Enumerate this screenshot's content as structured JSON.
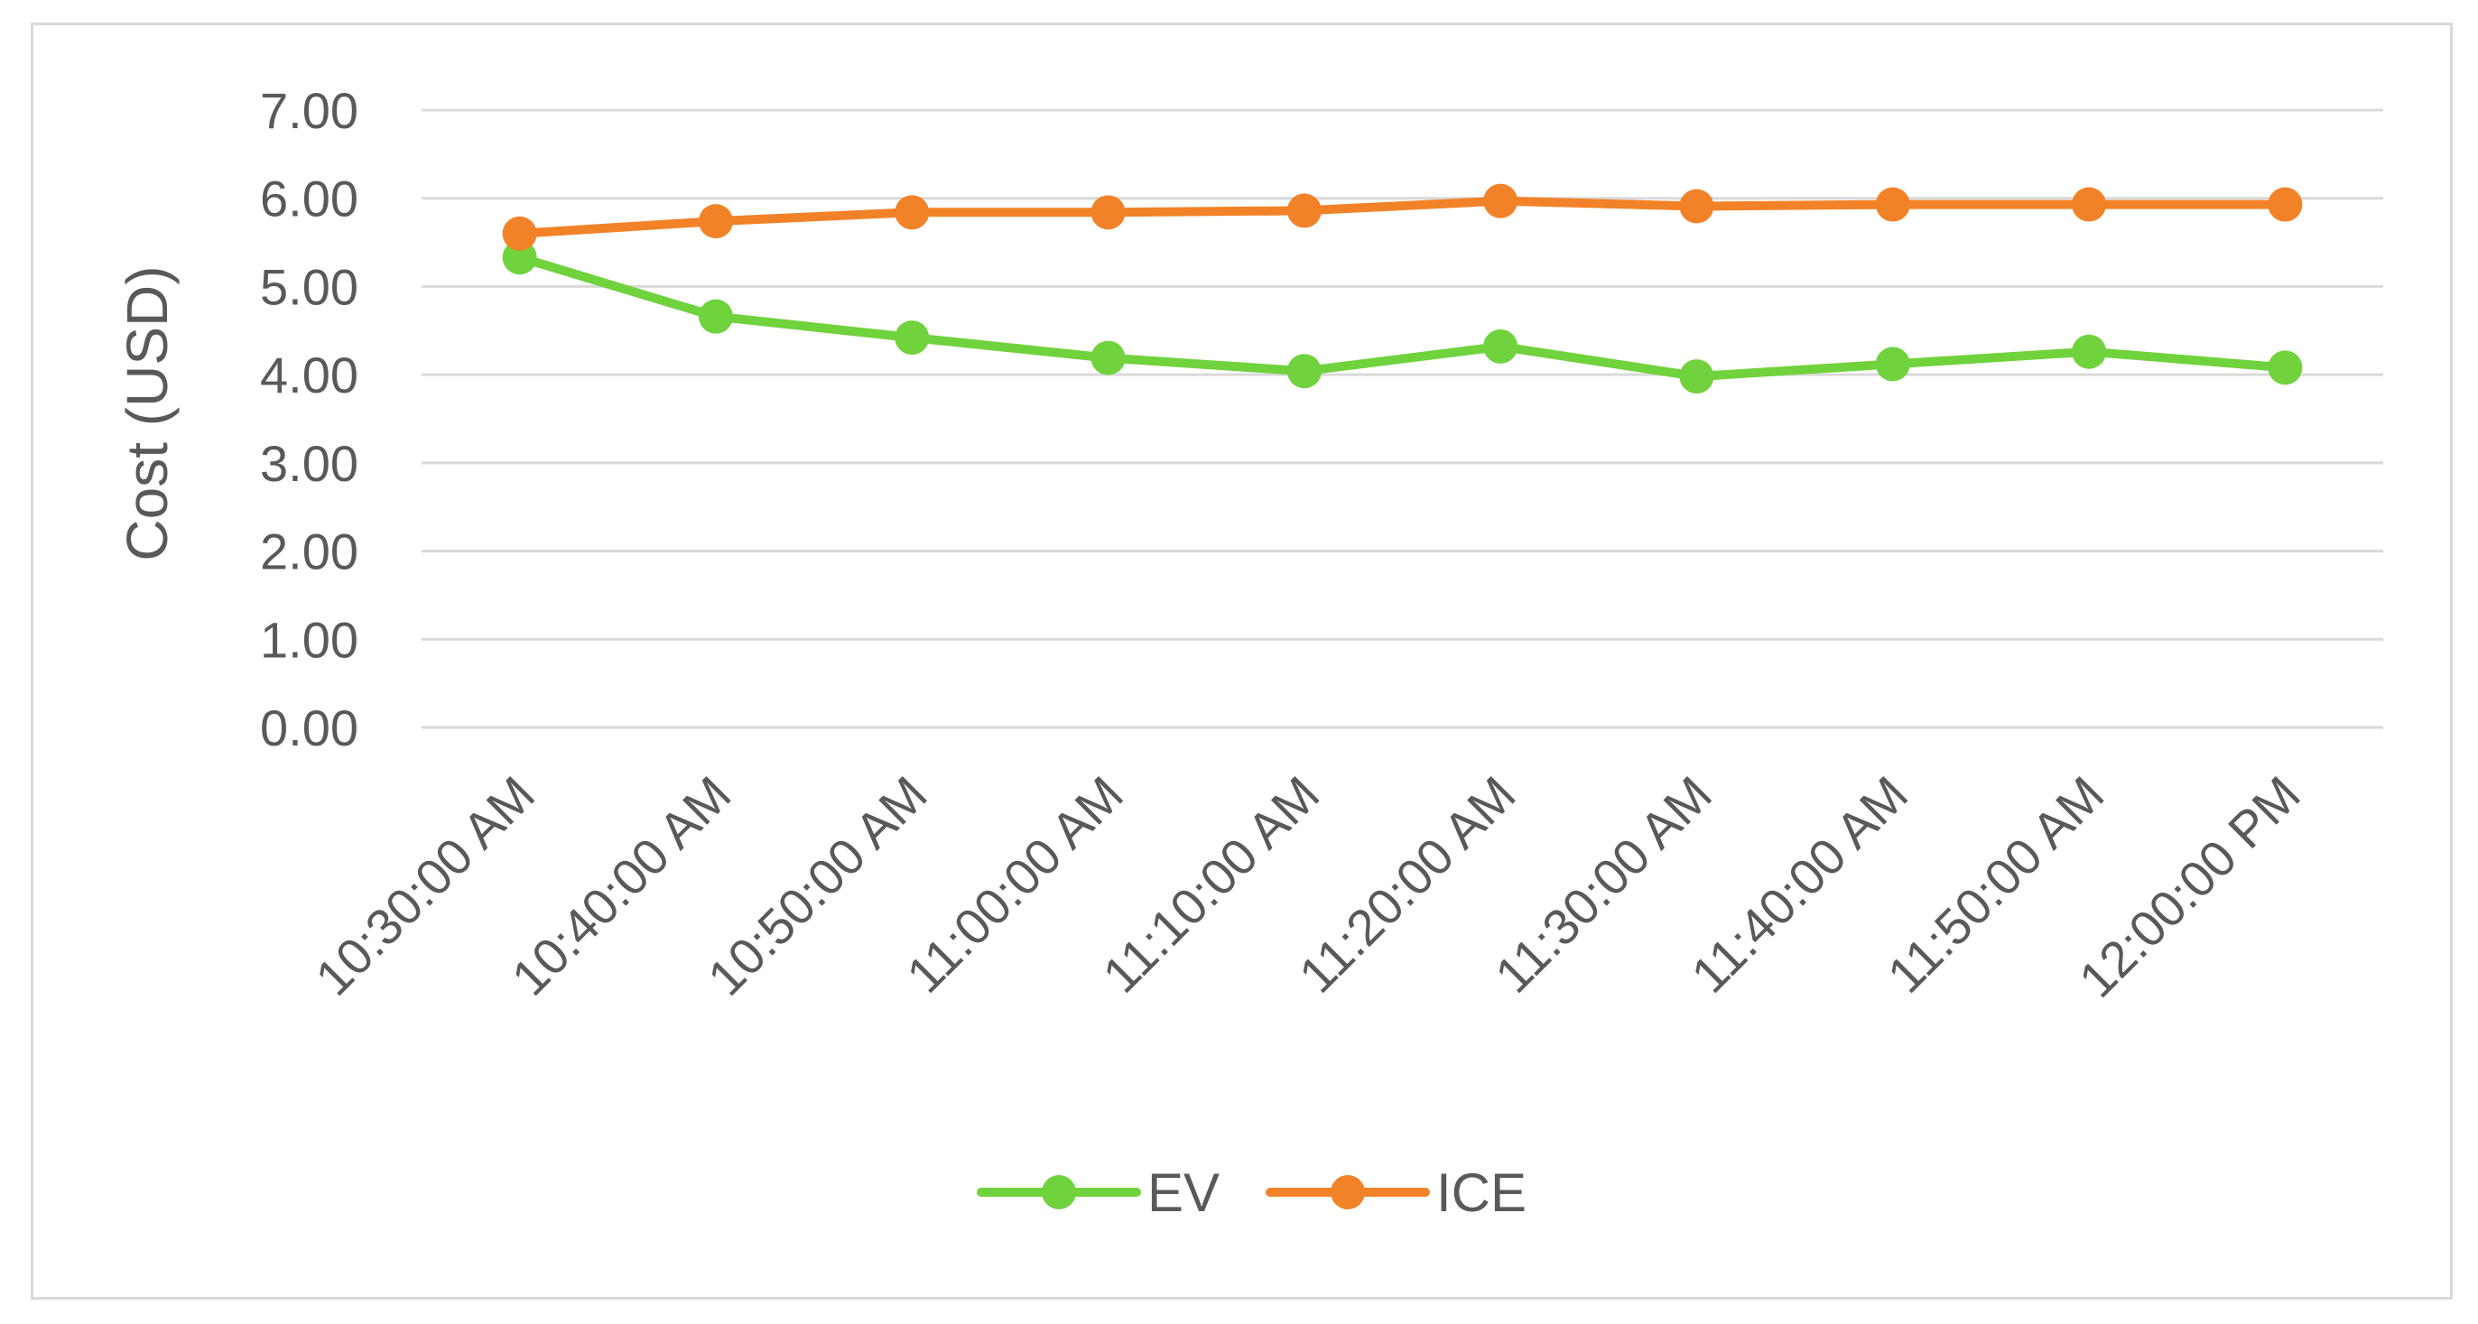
{
  "chart_data": {
    "type": "line",
    "title": "",
    "xlabel": "",
    "ylabel": "Cost (USD)",
    "ylim": [
      0,
      7
    ],
    "ytick_step": 1,
    "ytick_labels": [
      "0.00",
      "1.00",
      "2.00",
      "3.00",
      "4.00",
      "5.00",
      "6.00",
      "7.00"
    ],
    "grid": true,
    "legend_position": "bottom",
    "categories": [
      "10:30:00 AM",
      "10:40:00 AM",
      "10:50:00 AM",
      "11:00:00 AM",
      "11:10:00 AM",
      "11:20:00 AM",
      "11:30:00 AM",
      "11:40:00 AM",
      "11:50:00 AM",
      "12:00:00 PM"
    ],
    "series": [
      {
        "name": "EV",
        "color": "#70d23c",
        "values": [
          5.33,
          4.66,
          4.42,
          4.19,
          4.04,
          4.32,
          3.98,
          4.12,
          4.26,
          4.08
        ]
      },
      {
        "name": "ICE",
        "color": "#f28227",
        "values": [
          5.6,
          5.74,
          5.84,
          5.84,
          5.86,
          5.97,
          5.91,
          5.93,
          5.93,
          5.93
        ]
      }
    ]
  }
}
